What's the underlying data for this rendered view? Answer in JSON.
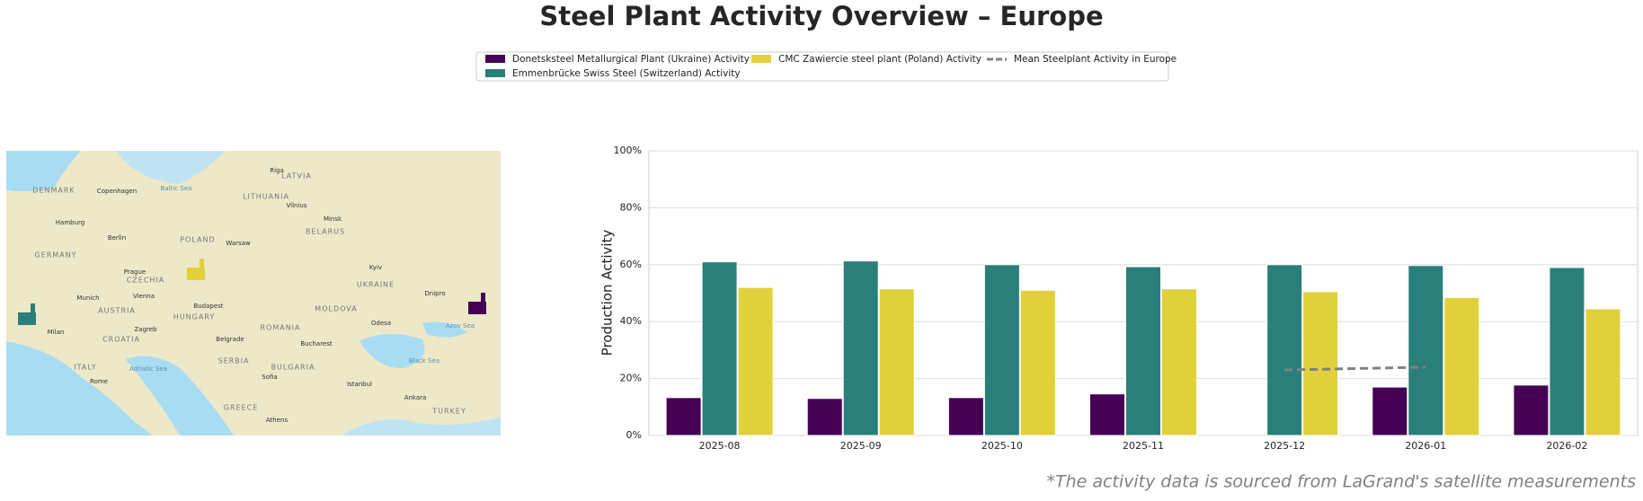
{
  "chart_data": {
    "type": "bar",
    "title": "Steel Plant Activity Overview – Europe",
    "y_label": "Production Activity",
    "footnote": "*The activity data is sourced from LaGrand's satellite measurements",
    "categories": [
      "2025-08",
      "2025-09",
      "2025-10",
      "2025-11",
      "2025-12",
      "2026-01",
      "2026-02"
    ],
    "series": [
      {
        "name": "Donetsksteel Metallurgical Plant (Ukraine) Activity",
        "color": "#440154",
        "values": [
          13.3,
          13,
          13.3,
          14.6,
          null,
          17,
          17.7
        ]
      },
      {
        "name": "Emmenbrücke Swiss Steel (Switzerland) Activity",
        "color": "#2a7f7a",
        "values": [
          61,
          61.3,
          60,
          59.3,
          60,
          59.7,
          59
        ]
      },
      {
        "name": "CMC Zawiercie steel plant (Poland) Activity",
        "color": "#e0d13c",
        "values": [
          52,
          51.5,
          51,
          51.5,
          50.5,
          48.5,
          44.5
        ]
      },
      {
        "name": "Mean Steelplant Activity in Europe",
        "color": "#808080",
        "type": "line",
        "dashed": true,
        "values": [
          null,
          null,
          null,
          null,
          23,
          24,
          null
        ]
      }
    ],
    "ylim": [
      0,
      100
    ],
    "yticks": [
      {
        "value": 0,
        "label": "0%"
      },
      {
        "value": 20,
        "label": "20%"
      },
      {
        "value": 40,
        "label": "40%"
      },
      {
        "value": 60,
        "label": "60%"
      },
      {
        "value": 80,
        "label": "80%"
      },
      {
        "value": 100,
        "label": "100%"
      }
    ],
    "grid": true,
    "map_labels": [
      "DENMARK",
      "Copenhagen",
      "Baltic Sea",
      "LATVIA",
      "Riga",
      "LITHUANIA",
      "Vilnius",
      "Minsk",
      "BELARUS",
      "POLAND",
      "Warsaw",
      "Berlin",
      "Hamburg",
      "GERMANY",
      "Prague",
      "CZECHIA",
      "Vienna",
      "AUSTRIA",
      "Budapest",
      "HUNGARY",
      "UKRAINE",
      "Kyiv",
      "Dnipro",
      "MOLDOVA",
      "Odesa",
      "ROMANIA",
      "Bucharest",
      "Black Sea",
      "BULGARIA",
      "Sofia",
      "SERBIA",
      "Belgrade",
      "CROATIA",
      "Zagreb",
      "ITALY",
      "Rome",
      "Adriatic Sea",
      "GREECE",
      "Athens",
      "TURKEY",
      "Ankara",
      "Istanbul",
      "Milan",
      "Munich",
      "Azov Sea"
    ]
  }
}
